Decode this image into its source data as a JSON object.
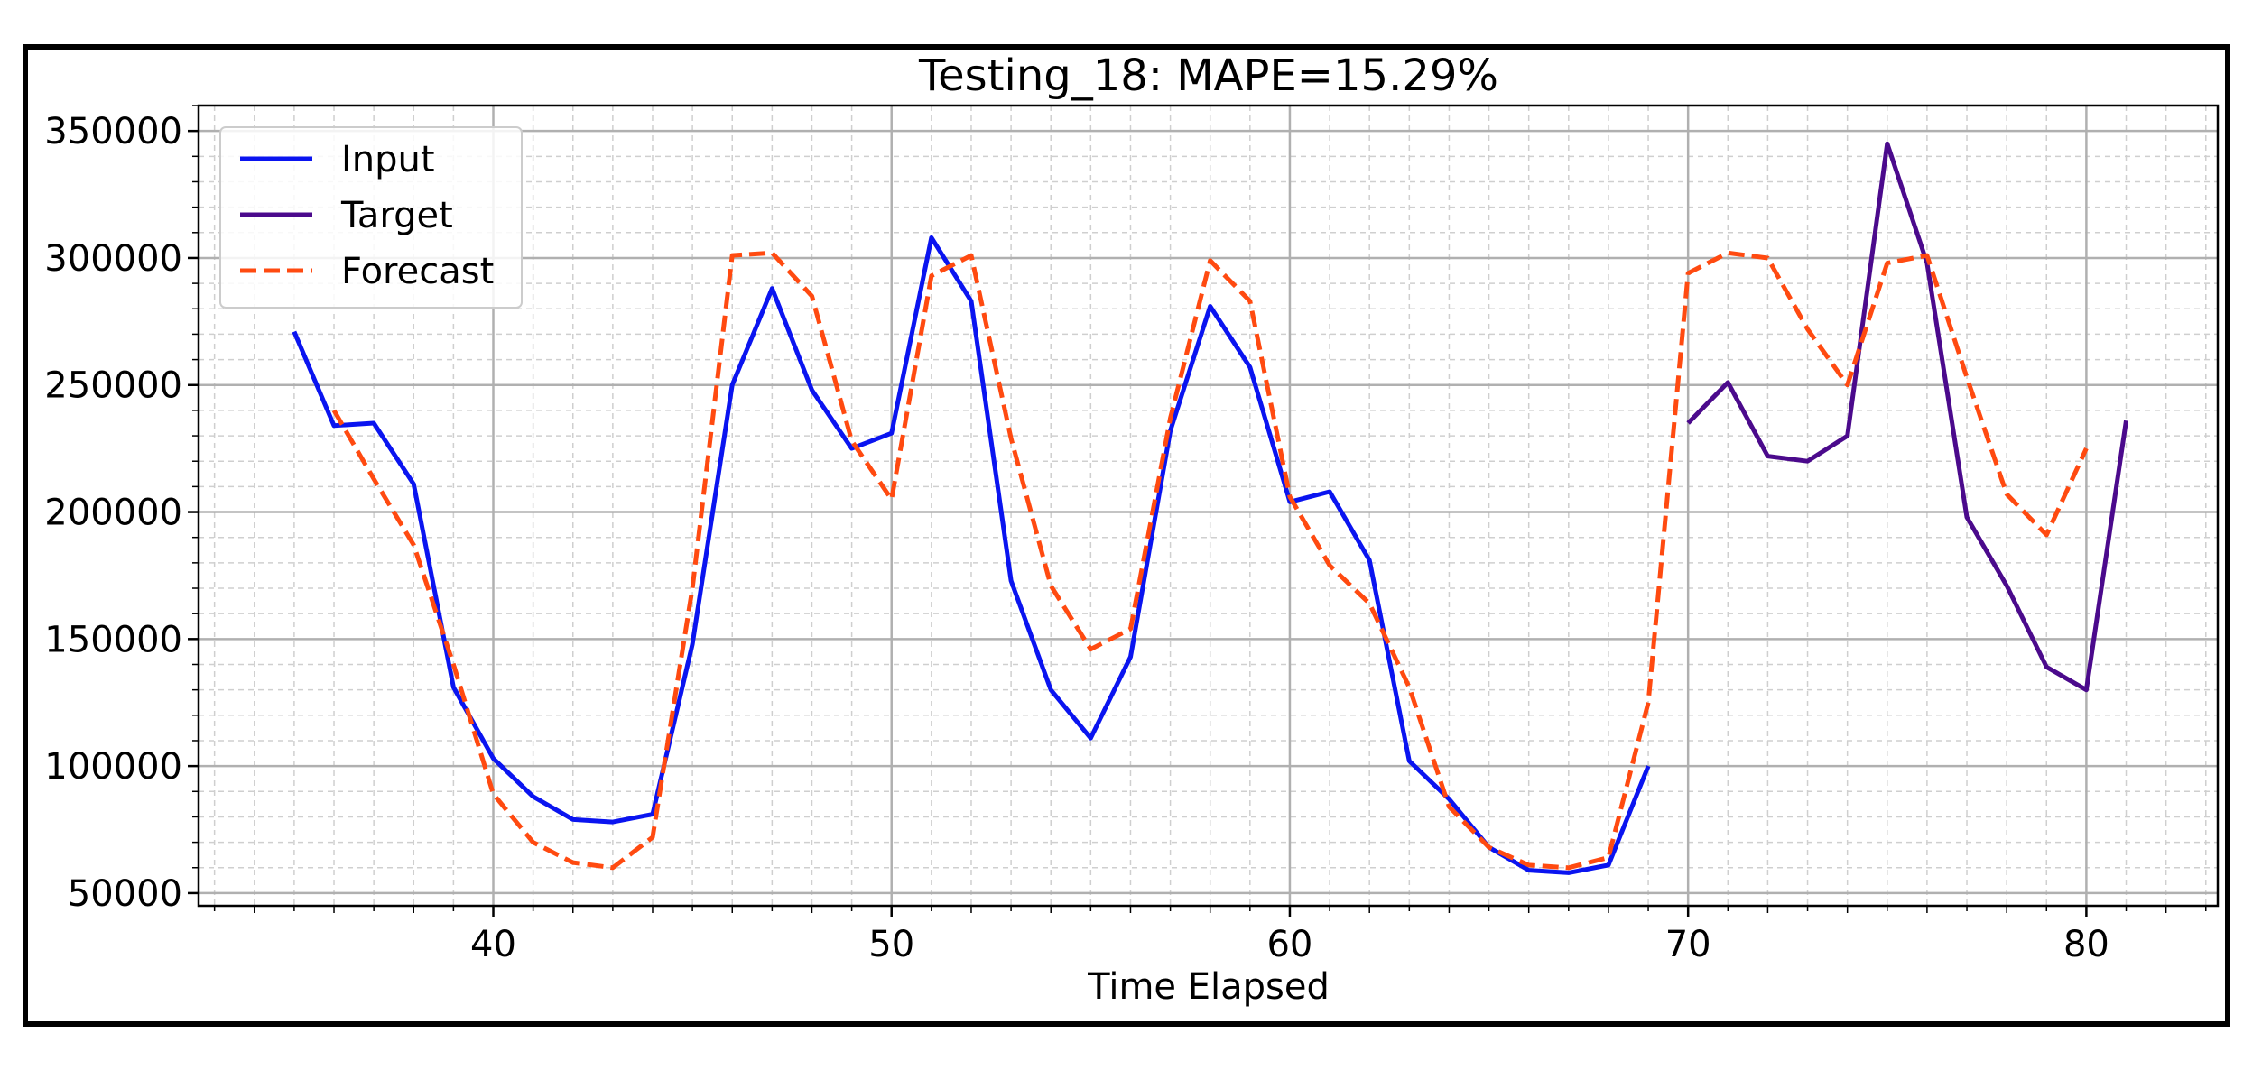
{
  "chart_data": {
    "type": "line",
    "title": "Testing_18: MAPE=15.29%",
    "xlabel": "Time Elapsed",
    "ylabel": "",
    "xlim": [
      32.6,
      83.3
    ],
    "ylim": [
      45000,
      360000
    ],
    "xticks": [
      40,
      50,
      60,
      70,
      80
    ],
    "yticks": [
      50000,
      100000,
      150000,
      200000,
      250000,
      300000,
      350000
    ],
    "grid": true,
    "legend_position": "top-left",
    "series": [
      {
        "name": "Input",
        "color": "#0a14f0",
        "style": "solid",
        "x": [
          35,
          36,
          37,
          38,
          39,
          40,
          41,
          42,
          43,
          44,
          45,
          46,
          47,
          48,
          49,
          50,
          51,
          52,
          53,
          54,
          55,
          56,
          57,
          58,
          59,
          60,
          61,
          62,
          63,
          64,
          65,
          66,
          67,
          68,
          69
        ],
        "values": [
          271000,
          234000,
          235000,
          211000,
          131000,
          103000,
          88000,
          79000,
          78000,
          81000,
          148000,
          250000,
          288000,
          248000,
          225000,
          231000,
          308000,
          283000,
          173000,
          130000,
          111000,
          143000,
          232000,
          281000,
          257000,
          204000,
          208000,
          181000,
          102000,
          87000,
          68000,
          59000,
          58000,
          61000,
          100000
        ]
      },
      {
        "name": "Target",
        "color": "#4b0a8c",
        "style": "solid",
        "x": [
          70,
          71,
          72,
          73,
          74,
          75,
          76,
          77,
          78,
          79,
          80,
          81
        ],
        "values": [
          235000,
          251000,
          222000,
          220000,
          230000,
          345000,
          298000,
          198000,
          171000,
          139000,
          130000,
          236000
        ]
      },
      {
        "name": "Forecast",
        "color": "#ff4a10",
        "style": "dashed",
        "x": [
          36,
          37,
          38,
          39,
          40,
          41,
          42,
          43,
          44,
          45,
          46,
          47,
          48,
          49,
          50,
          51,
          52,
          53,
          54,
          55,
          56,
          57,
          58,
          59,
          60,
          61,
          62,
          63,
          64,
          65,
          66,
          67,
          68,
          69,
          70,
          71,
          72,
          73,
          74,
          75,
          76,
          77,
          78,
          79,
          80
        ],
        "values": [
          240000,
          213000,
          187000,
          140000,
          89000,
          70000,
          62000,
          60000,
          72000,
          170000,
          301000,
          302000,
          285000,
          228000,
          205000,
          293000,
          301000,
          229000,
          171000,
          146000,
          154000,
          237000,
          299000,
          283000,
          206000,
          179000,
          164000,
          131000,
          84000,
          68000,
          61000,
          60000,
          64000,
          125000,
          294000,
          302000,
          300000,
          272000,
          250000,
          298000,
          301000,
          253000,
          207000,
          191000,
          225000
        ]
      }
    ]
  }
}
